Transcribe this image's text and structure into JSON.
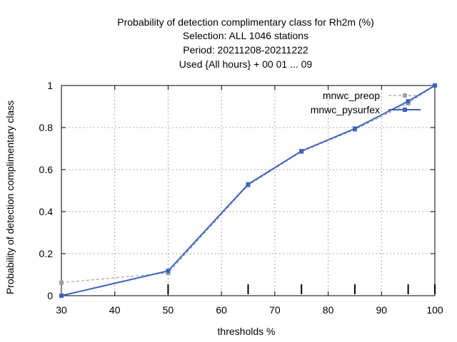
{
  "chart_data": {
    "type": "line",
    "title_lines": [
      "Probability of detection complimentary class  for Rh2m (%)",
      "Selection: ALL    1046 stations",
      "Period: 20211208-20211222",
      "Used {All hours} + 00 01 ... 09"
    ],
    "xlabel": "thresholds %",
    "ylabel": "Probability of detection complimentary class",
    "xlim": [
      30,
      100
    ],
    "ylim": [
      0,
      1
    ],
    "xticks": [
      30,
      40,
      50,
      60,
      70,
      80,
      90,
      100
    ],
    "yticks": [
      0,
      0.2,
      0.4,
      0.6,
      0.8,
      1
    ],
    "ytick_labels": [
      "0",
      "0.2",
      "0.4",
      "0.6",
      "0.8",
      "1"
    ],
    "threshold_marks": [
      50,
      65,
      75,
      85,
      95,
      100
    ],
    "grid": true,
    "legend_position": "top-right",
    "series": [
      {
        "name": "mnwc_preop",
        "color": "#a0a0a0",
        "dashed": true,
        "x": [
          30,
          50,
          65,
          75,
          85,
          95,
          100
        ],
        "y": [
          0.062,
          0.108,
          0.525,
          0.685,
          0.79,
          0.915,
          1.0
        ]
      },
      {
        "name": "mnwc_pysurfex",
        "color": "#3a62c8",
        "dashed": false,
        "x": [
          30,
          50,
          65,
          75,
          85,
          95,
          100
        ],
        "y": [
          0.0,
          0.118,
          0.53,
          0.688,
          0.795,
          0.925,
          1.0
        ]
      }
    ]
  }
}
